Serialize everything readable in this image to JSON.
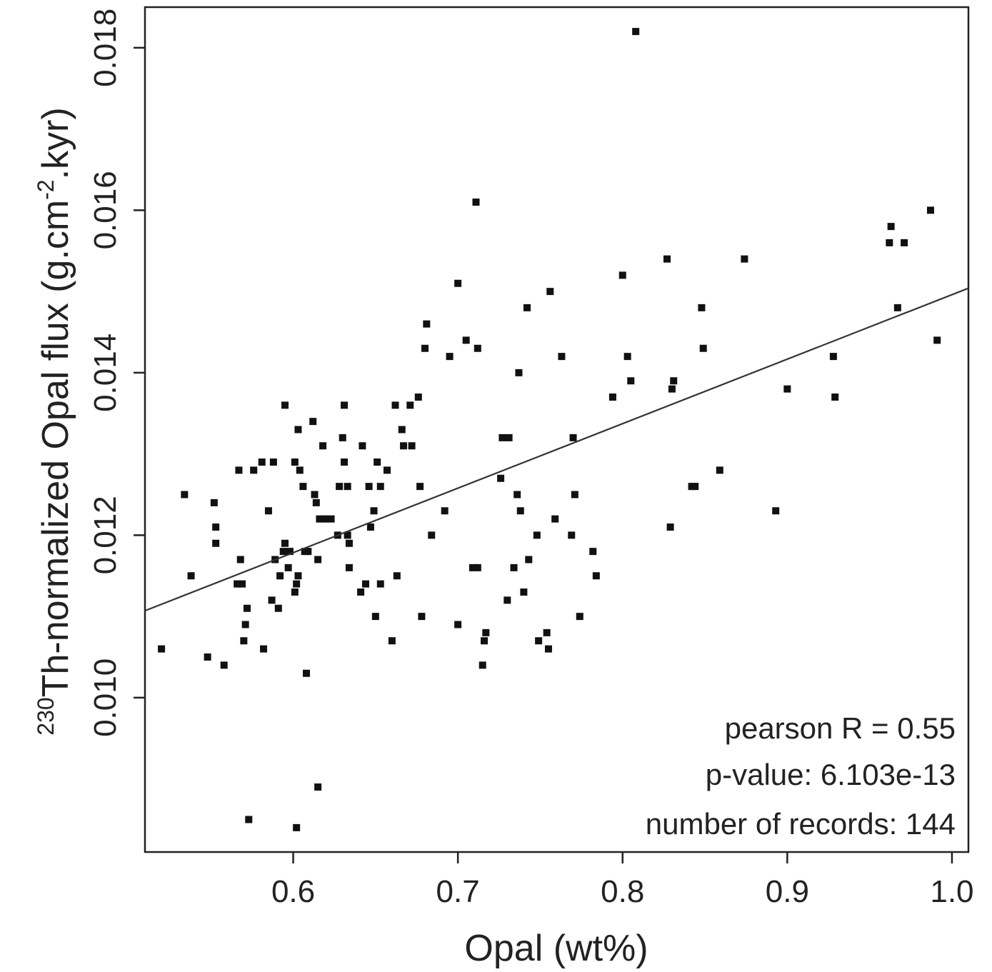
{
  "chart_data": {
    "type": "scatter",
    "title": "",
    "xlabel": "Opal (wt%)",
    "ylabel": {
      "superscript": "230",
      "main": "Th-normalized Opal flux (g.cm",
      "exponent": "-2",
      "tail": ".kyr)"
    },
    "xlim": [
      0.51,
      1.01
    ],
    "ylim": [
      0.0081,
      0.0185
    ],
    "xticks": [
      {
        "value": 0.6,
        "label": "0.6"
      },
      {
        "value": 0.7,
        "label": "0.7"
      },
      {
        "value": 0.8,
        "label": "0.8"
      },
      {
        "value": 0.9,
        "label": "0.9"
      },
      {
        "value": 1.0,
        "label": "1.0"
      }
    ],
    "yticks": [
      {
        "value": 0.01,
        "label": "0.010"
      },
      {
        "value": 0.012,
        "label": "0.012"
      },
      {
        "value": 0.014,
        "label": "0.014"
      },
      {
        "value": 0.016,
        "label": "0.016"
      },
      {
        "value": 0.018,
        "label": "0.018"
      }
    ],
    "grid": false,
    "regression_line": {
      "x": [
        0.51,
        1.01
      ],
      "y": [
        0.01107,
        0.01504
      ]
    },
    "annotations": [
      "pearson R = 0.55",
      "p-value:  6.103e-13",
      "number of records: 144"
    ],
    "color": "#111111",
    "points": [
      [
        0.52,
        0.0106
      ],
      [
        0.534,
        0.0125
      ],
      [
        0.538,
        0.0115
      ],
      [
        0.548,
        0.0105
      ],
      [
        0.552,
        0.0124
      ],
      [
        0.553,
        0.0121
      ],
      [
        0.553,
        0.0119
      ],
      [
        0.558,
        0.0104
      ],
      [
        0.566,
        0.0114
      ],
      [
        0.567,
        0.0128
      ],
      [
        0.568,
        0.0117
      ],
      [
        0.569,
        0.0114
      ],
      [
        0.57,
        0.0107
      ],
      [
        0.571,
        0.0109
      ],
      [
        0.572,
        0.0111
      ],
      [
        0.573,
        0.0085
      ],
      [
        0.576,
        0.0128
      ],
      [
        0.581,
        0.0129
      ],
      [
        0.582,
        0.0106
      ],
      [
        0.585,
        0.0123
      ],
      [
        0.587,
        0.0112
      ],
      [
        0.588,
        0.0129
      ],
      [
        0.589,
        0.0117
      ],
      [
        0.591,
        0.0111
      ],
      [
        0.592,
        0.0115
      ],
      [
        0.594,
        0.0118
      ],
      [
        0.595,
        0.0119
      ],
      [
        0.595,
        0.0136
      ],
      [
        0.597,
        0.0116
      ],
      [
        0.598,
        0.0118
      ],
      [
        0.601,
        0.0129
      ],
      [
        0.601,
        0.0113
      ],
      [
        0.602,
        0.0084
      ],
      [
        0.602,
        0.0114
      ],
      [
        0.603,
        0.0115
      ],
      [
        0.603,
        0.0133
      ],
      [
        0.604,
        0.0128
      ],
      [
        0.606,
        0.0126
      ],
      [
        0.607,
        0.0118
      ],
      [
        0.608,
        0.0103
      ],
      [
        0.609,
        0.0118
      ],
      [
        0.612,
        0.0134
      ],
      [
        0.613,
        0.0125
      ],
      [
        0.614,
        0.0124
      ],
      [
        0.615,
        0.0117
      ],
      [
        0.615,
        0.0089
      ],
      [
        0.616,
        0.0122
      ],
      [
        0.618,
        0.0131
      ],
      [
        0.619,
        0.0122
      ],
      [
        0.623,
        0.0122
      ],
      [
        0.627,
        0.012
      ],
      [
        0.628,
        0.0126
      ],
      [
        0.63,
        0.0132
      ],
      [
        0.631,
        0.0136
      ],
      [
        0.631,
        0.0129
      ],
      [
        0.633,
        0.0126
      ],
      [
        0.633,
        0.012
      ],
      [
        0.634,
        0.0119
      ],
      [
        0.634,
        0.0116
      ],
      [
        0.641,
        0.0113
      ],
      [
        0.642,
        0.0131
      ],
      [
        0.644,
        0.0114
      ],
      [
        0.646,
        0.0126
      ],
      [
        0.647,
        0.0121
      ],
      [
        0.649,
        0.0123
      ],
      [
        0.65,
        0.011
      ],
      [
        0.651,
        0.0129
      ],
      [
        0.653,
        0.0126
      ],
      [
        0.653,
        0.0114
      ],
      [
        0.657,
        0.0128
      ],
      [
        0.66,
        0.0107
      ],
      [
        0.662,
        0.0136
      ],
      [
        0.663,
        0.0115
      ],
      [
        0.666,
        0.0133
      ],
      [
        0.667,
        0.0131
      ],
      [
        0.671,
        0.0136
      ],
      [
        0.672,
        0.0131
      ],
      [
        0.676,
        0.0137
      ],
      [
        0.677,
        0.0126
      ],
      [
        0.678,
        0.011
      ],
      [
        0.68,
        0.0143
      ],
      [
        0.681,
        0.0146
      ],
      [
        0.684,
        0.012
      ],
      [
        0.692,
        0.0123
      ],
      [
        0.695,
        0.0142
      ],
      [
        0.7,
        0.0109
      ],
      [
        0.7,
        0.0151
      ],
      [
        0.705,
        0.0144
      ],
      [
        0.709,
        0.0116
      ],
      [
        0.711,
        0.0161
      ],
      [
        0.712,
        0.0116
      ],
      [
        0.712,
        0.0143
      ],
      [
        0.715,
        0.0104
      ],
      [
        0.716,
        0.0107
      ],
      [
        0.717,
        0.0108
      ],
      [
        0.726,
        0.0127
      ],
      [
        0.727,
        0.0132
      ],
      [
        0.73,
        0.0112
      ],
      [
        0.731,
        0.0132
      ],
      [
        0.734,
        0.0116
      ],
      [
        0.736,
        0.0125
      ],
      [
        0.737,
        0.014
      ],
      [
        0.738,
        0.0123
      ],
      [
        0.74,
        0.0113
      ],
      [
        0.742,
        0.0148
      ],
      [
        0.743,
        0.0117
      ],
      [
        0.748,
        0.012
      ],
      [
        0.749,
        0.0107
      ],
      [
        0.754,
        0.0108
      ],
      [
        0.755,
        0.0106
      ],
      [
        0.756,
        0.015
      ],
      [
        0.759,
        0.0122
      ],
      [
        0.763,
        0.0142
      ],
      [
        0.769,
        0.012
      ],
      [
        0.77,
        0.0132
      ],
      [
        0.771,
        0.0125
      ],
      [
        0.774,
        0.011
      ],
      [
        0.782,
        0.0118
      ],
      [
        0.784,
        0.0115
      ],
      [
        0.794,
        0.0137
      ],
      [
        0.8,
        0.0152
      ],
      [
        0.803,
        0.0142
      ],
      [
        0.805,
        0.0139
      ],
      [
        0.808,
        0.0182
      ],
      [
        0.827,
        0.0154
      ],
      [
        0.829,
        0.0121
      ],
      [
        0.83,
        0.0138
      ],
      [
        0.831,
        0.0139
      ],
      [
        0.842,
        0.0126
      ],
      [
        0.844,
        0.0126
      ],
      [
        0.848,
        0.0148
      ],
      [
        0.849,
        0.0143
      ],
      [
        0.859,
        0.0128
      ],
      [
        0.874,
        0.0154
      ],
      [
        0.893,
        0.0123
      ],
      [
        0.9,
        0.0138
      ],
      [
        0.928,
        0.0142
      ],
      [
        0.929,
        0.0137
      ],
      [
        0.962,
        0.0156
      ],
      [
        0.963,
        0.0158
      ],
      [
        0.967,
        0.0148
      ],
      [
        0.971,
        0.0156
      ],
      [
        0.987,
        0.016
      ],
      [
        0.991,
        0.0144
      ]
    ]
  }
}
